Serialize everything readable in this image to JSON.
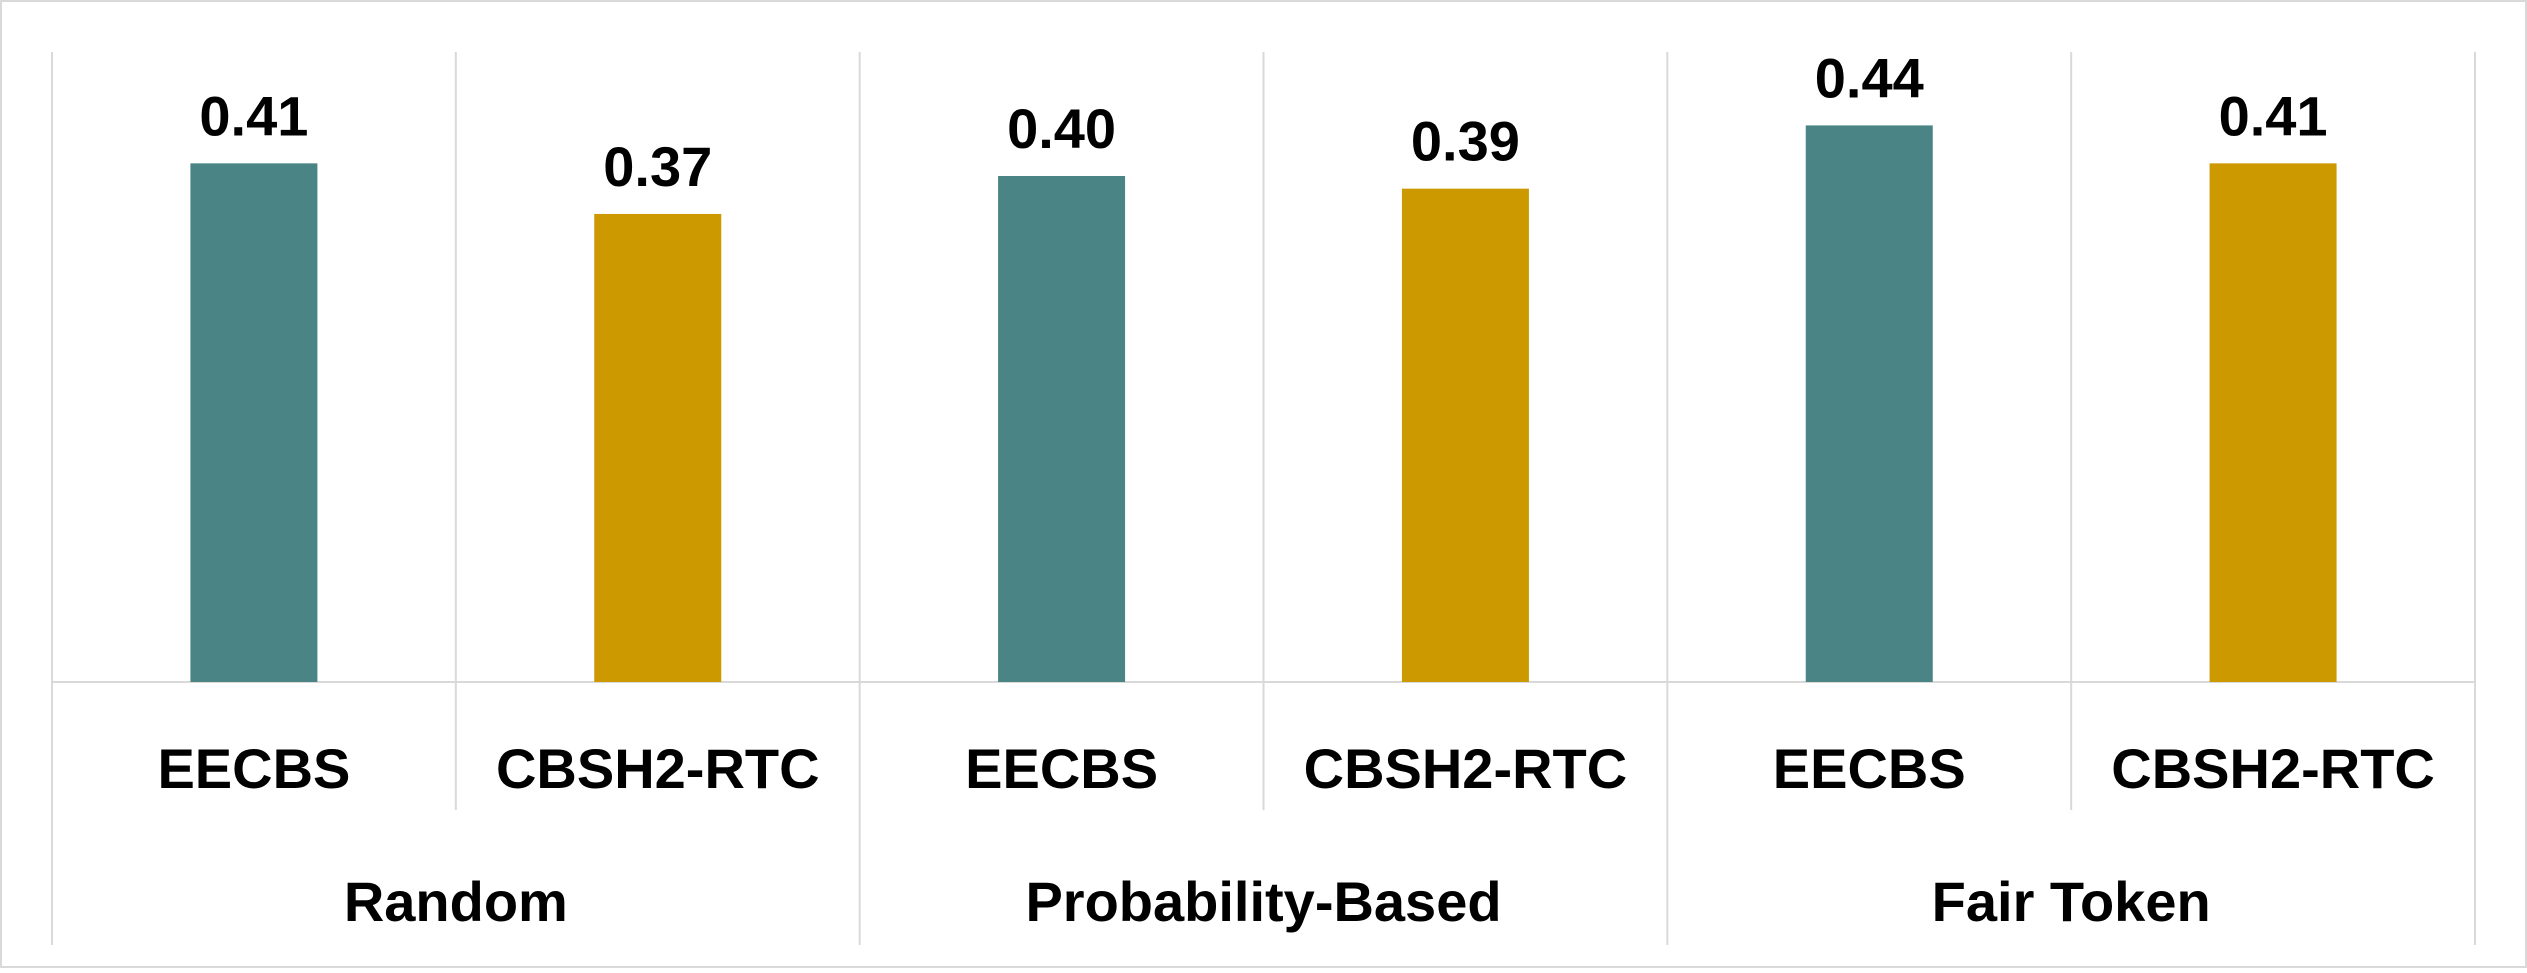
{
  "chart_data": {
    "type": "bar",
    "title": "",
    "xlabel": "",
    "ylabel": "",
    "ylim": [
      0,
      0.52
    ],
    "grid": false,
    "legend": "none",
    "colors": {
      "EECBS": "#4a8484",
      "CBSH2-RTC": "#cc9900"
    },
    "groups": [
      {
        "label": "Random",
        "bars": [
          {
            "category": "EECBS",
            "value": 0.41,
            "label": "0.41"
          },
          {
            "category": "CBSH2-RTC",
            "value": 0.37,
            "label": "0.37"
          }
        ]
      },
      {
        "label": "Probability-Based",
        "bars": [
          {
            "category": "EECBS",
            "value": 0.4,
            "label": "0.40"
          },
          {
            "category": "CBSH2-RTC",
            "value": 0.39,
            "label": "0.39"
          }
        ]
      },
      {
        "label": "Fair Token",
        "bars": [
          {
            "category": "EECBS",
            "value": 0.44,
            "label": "0.44"
          },
          {
            "category": "CBSH2-RTC",
            "value": 0.41,
            "label": "0.41"
          }
        ]
      }
    ]
  }
}
